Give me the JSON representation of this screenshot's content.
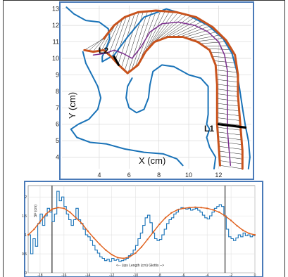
{
  "chart_data": [
    {
      "type": "line",
      "panel": "vocal tract midsagittal contour",
      "xlabel": "X (cm)",
      "ylabel": "Y (cm)",
      "xlim": [
        1.5,
        14.2
      ],
      "ylim": [
        3.3,
        13.2
      ],
      "x_ticks": [
        "4",
        "6",
        "8",
        "10",
        "12"
      ],
      "y_ticks": [
        "4",
        "5",
        "6",
        "7",
        "8",
        "9",
        "10",
        "11",
        "12",
        "13"
      ],
      "grid": true,
      "annotations": [
        "L1",
        "L2"
      ],
      "colors": {
        "outline": "#1a73b8",
        "boundary": "#c8531d",
        "midline": "#7b2d8e",
        "grid": "#d9d9d9"
      },
      "series": [
        {
          "role": "palate-pharynx outer wall (blue)",
          "points": [
            [
              1.8,
              13.1
            ],
            [
              2.3,
              12.7
            ],
            [
              3.1,
              12.3
            ],
            [
              4.0,
              12.2
            ],
            [
              4.6,
              11.8
            ],
            [
              4.7,
              11.2
            ],
            [
              4.5,
              10.7
            ],
            [
              4.2,
              10.1
            ],
            [
              4.2,
              9.8
            ],
            [
              5.0,
              10.2
            ],
            [
              5.9,
              11.3
            ],
            [
              7.0,
              12.5
            ],
            [
              8.5,
              13.0
            ],
            [
              10.0,
              12.6
            ],
            [
              11.3,
              12.0
            ],
            [
              12.3,
              11.2
            ],
            [
              12.9,
              10.3
            ],
            [
              13.2,
              9.3
            ],
            [
              13.4,
              8.2
            ],
            [
              13.6,
              7.0
            ],
            [
              13.8,
              5.9
            ],
            [
              14.0,
              5.0
            ],
            [
              14.1,
              4.0
            ],
            [
              14.0,
              3.3
            ]
          ]
        },
        {
          "role": "lower lip and jaw (blue)",
          "points": [
            [
              2.9,
              10.4
            ],
            [
              3.1,
              9.7
            ],
            [
              3.5,
              9.0
            ],
            [
              3.9,
              8.3
            ],
            [
              4.1,
              7.6
            ],
            [
              3.9,
              6.9
            ],
            [
              3.3,
              6.3
            ],
            [
              2.6,
              6.0
            ],
            [
              2.1,
              5.7
            ],
            [
              2.5,
              5.2
            ],
            [
              3.4,
              4.9
            ],
            [
              4.5,
              4.8
            ],
            [
              5.7,
              4.5
            ],
            [
              7.0,
              4.3
            ],
            [
              8.3,
              4.2
            ],
            [
              9.2,
              3.9
            ],
            [
              9.6,
              3.5
            ]
          ]
        },
        {
          "role": "tongue and pharynx front wall (blue)",
          "points": [
            [
              6.2,
              8.8
            ],
            [
              5.9,
              8.3
            ],
            [
              5.8,
              7.6
            ],
            [
              6.0,
              7.0
            ],
            [
              6.5,
              6.7
            ],
            [
              7.0,
              6.9
            ],
            [
              7.3,
              7.6
            ],
            [
              7.4,
              8.4
            ],
            [
              7.6,
              9.2
            ],
            [
              8.2,
              9.6
            ],
            [
              9.0,
              9.5
            ],
            [
              10.0,
              9.0
            ],
            [
              10.8,
              8.8
            ],
            [
              11.3,
              8.3
            ],
            [
              11.3,
              7.6
            ],
            [
              11.3,
              6.6
            ],
            [
              11.2,
              6.0
            ],
            [
              11.4,
              5.7
            ],
            [
              11.2,
              5.2
            ],
            [
              11.4,
              4.6
            ],
            [
              11.8,
              4.0
            ],
            [
              11.7,
              3.3
            ]
          ]
        },
        {
          "role": "vocal tract upper boundary (orange)",
          "points": [
            [
              4.3,
              11.2
            ],
            [
              5.0,
              12.0
            ],
            [
              5.7,
              12.5
            ],
            [
              6.6,
              12.8
            ],
            [
              7.8,
              12.9
            ],
            [
              9.2,
              12.8
            ],
            [
              10.5,
              12.5
            ],
            [
              11.6,
              11.9
            ],
            [
              12.5,
              11.1
            ],
            [
              13.1,
              10.2
            ],
            [
              13.3,
              9.0
            ],
            [
              13.3,
              7.8
            ],
            [
              13.4,
              6.6
            ],
            [
              13.5,
              5.5
            ],
            [
              13.6,
              4.4
            ],
            [
              13.6,
              3.3
            ]
          ]
        },
        {
          "role": "vocal tract lower boundary (orange)",
          "points": [
            [
              3.0,
              10.5
            ],
            [
              3.6,
              10.4
            ],
            [
              4.3,
              10.5
            ],
            [
              4.8,
              10.1
            ],
            [
              5.3,
              9.6
            ],
            [
              5.9,
              9.1
            ],
            [
              6.6,
              9.6
            ],
            [
              7.1,
              10.4
            ],
            [
              7.7,
              11.0
            ],
            [
              8.6,
              11.3
            ],
            [
              9.6,
              11.3
            ],
            [
              10.6,
              11.0
            ],
            [
              11.4,
              10.5
            ],
            [
              11.8,
              9.6
            ],
            [
              11.9,
              8.4
            ],
            [
              11.9,
              7.2
            ],
            [
              11.9,
              6.0
            ],
            [
              12.0,
              4.8
            ],
            [
              12.1,
              3.5
            ]
          ]
        },
        {
          "role": "vocal tract midline (purple)",
          "points": [
            [
              3.6,
              10.2
            ],
            [
              4.4,
              10.3
            ],
            [
              5.0,
              10.5
            ],
            [
              5.6,
              10.3
            ],
            [
              6.2,
              10.0
            ],
            [
              6.8,
              10.7
            ],
            [
              7.4,
              11.6
            ],
            [
              8.2,
              12.1
            ],
            [
              9.3,
              12.2
            ],
            [
              10.4,
              12.0
            ],
            [
              11.3,
              11.6
            ],
            [
              12.0,
              11.0
            ],
            [
              12.4,
              10.2
            ],
            [
              12.6,
              9.2
            ],
            [
              12.6,
              8.0
            ],
            [
              12.6,
              6.9
            ],
            [
              12.6,
              5.6
            ],
            [
              12.7,
              4.5
            ],
            [
              12.8,
              3.5
            ]
          ]
        },
        {
          "role": "L1 measurement segment (black)",
          "points": [
            [
              12.0,
              6.0
            ],
            [
              13.8,
              5.8
            ]
          ]
        },
        {
          "role": "L2 measurement segment (black)",
          "points": [
            [
              5.0,
              10.1
            ],
            [
              5.3,
              9.6
            ]
          ]
        }
      ]
    },
    {
      "type": "line",
      "panel": "sagittal function along tract",
      "xlabel": "<-- Lips   Length (cm)   Glottis -->",
      "ylabel": "SF (cm)",
      "xlim": [
        -19,
        0
      ],
      "ylim": [
        0,
        2.3
      ],
      "x_ticks": [
        "-18",
        "-16",
        "-14",
        "-12",
        "-10",
        "-8",
        "-6",
        "-4",
        "-2",
        "0"
      ],
      "y_ticks": [
        "0",
        "0.5",
        "1",
        "1.5",
        "2"
      ],
      "grid": true,
      "vertical_lines": [
        -17,
        -2.5
      ],
      "colors": {
        "measured": "#1a73b8",
        "fitted": "#e0601c"
      },
      "series": [
        {
          "role": "measured SF (blue, stepped)",
          "x": [
            -19,
            -18.8,
            -18.6,
            -18.4,
            -18.2,
            -18,
            -17.8,
            -17.6,
            -17.4,
            -17.2,
            -17,
            -16.8,
            -16.6,
            -16.4,
            -16.2,
            -16,
            -15.8,
            -15.6,
            -15.4,
            -15.2,
            -15,
            -14.8,
            -14.6,
            -14.4,
            -14.2,
            -14,
            -13.8,
            -13.6,
            -13.4,
            -13.2,
            -13,
            -12.8,
            -12.6,
            -12.4,
            -12.2,
            -12,
            -11.8,
            -11.6,
            -11.4,
            -11.2,
            -11,
            -10.8,
            -10.6,
            -10.4,
            -10.2,
            -10,
            -9.8,
            -9.6,
            -9.4,
            -9.2,
            -9,
            -8.8,
            -8.6,
            -8.4,
            -8.2,
            -8,
            -7.8,
            -7.6,
            -7.4,
            -7.2,
            -7,
            -6.8,
            -6.6,
            -6.4,
            -6.2,
            -6,
            -5.8,
            -5.6,
            -5.4,
            -5.2,
            -5,
            -4.8,
            -4.6,
            -4.4,
            -4.2,
            -4,
            -3.8,
            -3.6,
            -3.4,
            -3.2,
            -3,
            -2.8,
            -2.6,
            -2.4,
            -2.2,
            -2,
            -1.8,
            -1.6,
            -1.4,
            -1.2,
            -1,
            -0.8,
            -0.6,
            -0.4,
            -0.2,
            0
          ],
          "values": [
            1.0,
            0.5,
            0.9,
            0.7,
            1.3,
            1.55,
            1.25,
            1.5,
            1.7,
            1.6,
            1.35,
            1.55,
            2.15,
            1.9,
            2.0,
            1.75,
            1.55,
            1.4,
            1.25,
            1.4,
            1.7,
            1.4,
            1.3,
            1.15,
            1.0,
            0.95,
            0.85,
            0.72,
            0.6,
            0.52,
            0.42,
            0.38,
            0.32,
            0.36,
            0.3,
            0.38,
            0.33,
            0.35,
            0.3,
            0.32,
            0.34,
            0.38,
            0.45,
            0.5,
            0.6,
            0.72,
            0.9,
            1.05,
            1.25,
            1.45,
            1.52,
            1.32,
            1.05,
            0.9,
            0.85,
            0.88,
            1.0,
            1.15,
            1.3,
            1.4,
            1.45,
            1.55,
            1.6,
            1.68,
            1.72,
            1.7,
            1.68,
            1.7,
            1.65,
            1.68,
            1.7,
            1.65,
            1.6,
            1.52,
            1.45,
            1.42,
            1.5,
            1.6,
            1.7,
            1.75,
            1.8,
            1.75,
            1.5,
            1.15,
            0.95,
            0.9,
            0.85,
            0.92,
            1.0,
            0.95,
            1.05,
            0.98,
            1.0,
            0.95,
            0.98,
            1.0
          ]
        },
        {
          "role": "fitted SF (orange)",
          "x": [
            -19,
            -18.5,
            -18,
            -17.5,
            -17,
            -16.5,
            -16,
            -15.5,
            -15,
            -14.5,
            -14,
            -13.5,
            -13,
            -12.5,
            -12,
            -11.5,
            -11,
            -10.5,
            -10,
            -9.5,
            -9,
            -8.5,
            -8,
            -7.5,
            -7,
            -6.5,
            -6,
            -5.5,
            -5,
            -4.5,
            -4,
            -3.5,
            -3,
            -2.5,
            -2,
            -1.5,
            -1,
            -0.5,
            0
          ],
          "values": [
            1.0,
            1.15,
            1.35,
            1.55,
            1.68,
            1.72,
            1.7,
            1.6,
            1.45,
            1.3,
            1.1,
            0.92,
            0.75,
            0.6,
            0.48,
            0.4,
            0.38,
            0.42,
            0.52,
            0.68,
            0.88,
            1.08,
            1.28,
            1.45,
            1.58,
            1.66,
            1.7,
            1.72,
            1.73,
            1.72,
            1.7,
            1.66,
            1.6,
            1.5,
            1.38,
            1.24,
            1.12,
            1.04,
            1.0
          ]
        }
      ]
    }
  ]
}
